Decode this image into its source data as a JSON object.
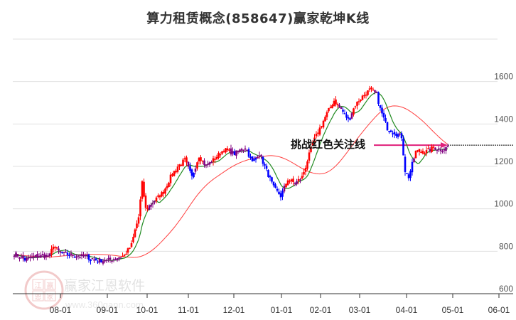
{
  "title": "算力租赁概念(858647)赢家乾坤K线",
  "watermark": {
    "logo_chars": [
      "江",
      "赢",
      "恩",
      "家"
    ],
    "text": "赢家江恩软件",
    "url": "www.360gann.com"
  },
  "annotation": {
    "label": "挑战红色关注线",
    "level": 1300
  },
  "colors": {
    "up": "#ff0000",
    "down": "#0000ff",
    "neutral": "#800080",
    "ma_short": "#228b22",
    "ma_long": "#ff4040",
    "arrow": "#e0207a",
    "grid": "#e0e0e0",
    "axis": "#333333"
  },
  "chart_data": {
    "type": "candlestick",
    "title": "算力租赁概念(858647)赢家乾坤K线",
    "xlabel": "",
    "ylabel": "",
    "ylim": [
      600,
      1800
    ],
    "y_ticks": [
      600,
      800,
      1000,
      1200,
      1400,
      1600
    ],
    "x_ticks": [
      "08-01",
      "09-01",
      "10-01",
      "11-01",
      "12-01",
      "01-01",
      "02-01",
      "03-01",
      "04-01",
      "05-01",
      "06-01"
    ],
    "grid": true,
    "legend": "none",
    "reference_line": {
      "value": 1300,
      "style": "dashed",
      "label": "挑战红色关注线"
    },
    "monthly_approx_close": [
      {
        "month": "07",
        "close": 770
      },
      {
        "month": "08",
        "close": 790
      },
      {
        "month": "09",
        "close": 755
      },
      {
        "month": "10",
        "close": 1100
      },
      {
        "month": "11",
        "close": 1250
      },
      {
        "month": "12",
        "close": 1260
      },
      {
        "month": "01",
        "close": 1100
      },
      {
        "month": "02",
        "close": 1450
      },
      {
        "month": "03",
        "close": 1500
      },
      {
        "month": "04",
        "close": 1250
      },
      {
        "month": "05",
        "close": 1290
      }
    ],
    "series": [
      {
        "name": "close",
        "keypoints": [
          [
            0,
            790
          ],
          [
            6,
            760
          ],
          [
            12,
            775
          ],
          [
            20,
            780
          ],
          [
            22,
            830
          ],
          [
            26,
            790
          ],
          [
            30,
            785
          ],
          [
            40,
            775
          ],
          [
            45,
            760
          ],
          [
            52,
            755
          ],
          [
            58,
            770
          ],
          [
            62,
            780
          ],
          [
            66,
            830
          ],
          [
            68,
            900
          ],
          [
            70,
            960
          ],
          [
            72,
            1120
          ],
          [
            74,
            1000
          ],
          [
            78,
            1030
          ],
          [
            84,
            1080
          ],
          [
            88,
            1150
          ],
          [
            92,
            1200
          ],
          [
            96,
            1230
          ],
          [
            100,
            1150
          ],
          [
            104,
            1250
          ],
          [
            108,
            1200
          ],
          [
            112,
            1230
          ],
          [
            118,
            1280
          ],
          [
            124,
            1260
          ],
          [
            130,
            1290
          ],
          [
            134,
            1220
          ],
          [
            138,
            1260
          ],
          [
            142,
            1180
          ],
          [
            146,
            1100
          ],
          [
            150,
            1060
          ],
          [
            154,
            1140
          ],
          [
            158,
            1120
          ],
          [
            162,
            1150
          ],
          [
            164,
            1200
          ],
          [
            168,
            1310
          ],
          [
            172,
            1380
          ],
          [
            176,
            1450
          ],
          [
            180,
            1510
          ],
          [
            184,
            1470
          ],
          [
            188,
            1420
          ],
          [
            192,
            1490
          ],
          [
            196,
            1530
          ],
          [
            200,
            1560
          ],
          [
            204,
            1540
          ],
          [
            206,
            1470
          ],
          [
            210,
            1380
          ],
          [
            214,
            1360
          ],
          [
            218,
            1340
          ],
          [
            220,
            1180
          ],
          [
            222,
            1150
          ],
          [
            226,
            1270
          ],
          [
            232,
            1270
          ],
          [
            236,
            1290
          ],
          [
            240,
            1280
          ],
          [
            244,
            1290
          ]
        ]
      },
      {
        "name": "ma_short",
        "color": "#228b22"
      },
      {
        "name": "ma_long",
        "color": "#ff4040"
      }
    ]
  }
}
